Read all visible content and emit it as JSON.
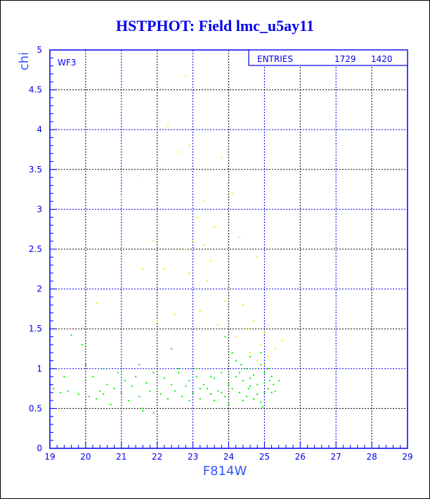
{
  "chart_data": {
    "type": "scatter",
    "title": "HSTPHOT: Field lmc_u5ay11",
    "xlabel": "F814W",
    "ylabel": "chi",
    "xlim": [
      19,
      29
    ],
    "ylim": [
      0,
      5
    ],
    "xticks": [
      "19",
      "20",
      "21",
      "22",
      "23",
      "24",
      "25",
      "26",
      "27",
      "28",
      "29"
    ],
    "yticks": [
      "0",
      "0.5",
      "1",
      "1.5",
      "2",
      "2.5",
      "3",
      "3.5",
      "4",
      "4.5",
      "5"
    ],
    "grid": true,
    "annotation": "WF3",
    "stats_box": {
      "label": "ENTRIES",
      "values": [
        "1729",
        "1420"
      ]
    },
    "colors": {
      "axis": "#0000ee",
      "grid_primary": "#0000ee",
      "grid_secondary": "#000000",
      "series_main": "#00ee00",
      "series_high_chi": "#eeee00"
    },
    "series": [
      {
        "color": "#00ee00",
        "points": [
          [
            19.1,
            0.75
          ],
          [
            19.3,
            0.7
          ],
          [
            19.5,
            0.72
          ],
          [
            19.6,
            1.42
          ],
          [
            19.8,
            0.68
          ],
          [
            19.9,
            1.3
          ],
          [
            20.0,
            0.85
          ],
          [
            20.1,
            0.65
          ],
          [
            20.2,
            0.9
          ],
          [
            20.3,
            0.62
          ],
          [
            20.4,
            0.72
          ],
          [
            20.5,
            0.68
          ],
          [
            20.6,
            0.8
          ],
          [
            20.7,
            0.55
          ],
          [
            20.8,
            0.75
          ],
          [
            20.9,
            0.95
          ],
          [
            21.0,
            0.7
          ],
          [
            21.1,
            0.85
          ],
          [
            21.2,
            0.6
          ],
          [
            21.3,
            0.78
          ],
          [
            21.4,
            0.9
          ],
          [
            21.5,
            0.65
          ],
          [
            21.6,
            0.5
          ],
          [
            21.7,
            0.82
          ],
          [
            21.8,
            0.72
          ],
          [
            21.9,
            0.95
          ],
          [
            22.0,
            0.75
          ],
          [
            22.1,
            0.68
          ],
          [
            22.2,
            0.88
          ],
          [
            22.3,
            0.62
          ],
          [
            22.4,
            0.8
          ],
          [
            22.5,
            0.72
          ],
          [
            22.6,
            0.95
          ],
          [
            22.7,
            0.65
          ],
          [
            22.8,
            0.78
          ],
          [
            22.9,
            0.85
          ],
          [
            23.0,
            0.7
          ],
          [
            23.1,
            0.9
          ],
          [
            23.2,
            0.62
          ],
          [
            23.3,
            0.8
          ],
          [
            23.4,
            0.75
          ],
          [
            23.5,
            0.68
          ],
          [
            23.6,
            0.88
          ],
          [
            23.7,
            0.72
          ],
          [
            23.8,
            0.95
          ],
          [
            23.9,
            0.65
          ],
          [
            24.0,
            0.8
          ],
          [
            24.1,
            0.75
          ],
          [
            24.2,
            0.9
          ],
          [
            24.3,
            0.7
          ],
          [
            24.4,
            0.85
          ],
          [
            24.5,
            1.0
          ],
          [
            24.6,
            0.78
          ],
          [
            24.7,
            0.92
          ],
          [
            24.8,
            0.68
          ],
          [
            24.9,
            1.05
          ],
          [
            25.0,
            0.82
          ],
          [
            25.1,
            0.75
          ],
          [
            25.2,
            0.9
          ],
          [
            25.3,
            0.72
          ],
          [
            25.4,
            0.85
          ],
          [
            24.2,
            1.1
          ],
          [
            24.5,
            0.65
          ],
          [
            24.7,
            0.62
          ],
          [
            24.9,
            0.58
          ],
          [
            25.0,
            0.95
          ],
          [
            25.1,
            1.0
          ],
          [
            25.2,
            0.7
          ],
          [
            24.3,
            0.95
          ],
          [
            24.6,
            0.88
          ],
          [
            24.8,
            0.8
          ],
          [
            23.5,
            0.9
          ],
          [
            23.8,
            0.7
          ],
          [
            23.2,
            0.75
          ],
          [
            22.9,
            0.6
          ],
          [
            24.4,
            0.6
          ],
          [
            25.0,
            0.7
          ],
          [
            24.1,
            1.2
          ],
          [
            24.6,
            1.15
          ],
          [
            24.9,
            1.2
          ],
          [
            23.9,
            1.4
          ],
          [
            22.4,
            1.25
          ],
          [
            21.5,
            1.05
          ],
          [
            20.5,
            1.0
          ],
          [
            19.0,
            0.8
          ],
          [
            23.6,
            0.6
          ],
          [
            24.0,
            0.55
          ],
          [
            24.95,
            0.52
          ],
          [
            22.6,
            1.0
          ],
          [
            23.1,
            1.0
          ],
          [
            21.9,
            0.45
          ],
          [
            21.6,
            0.47
          ],
          [
            20.0,
            1.05
          ],
          [
            19.4,
            0.9
          ],
          [
            24.35,
            1.05
          ],
          [
            24.75,
            1.0
          ],
          [
            25.15,
            0.85
          ],
          [
            25.25,
            0.8
          ],
          [
            24.55,
            0.75
          ]
        ]
      },
      {
        "color": "#eeee00",
        "points": [
          [
            22.8,
            4.68
          ],
          [
            22.3,
            4.05
          ],
          [
            22.9,
            3.8
          ],
          [
            22.6,
            3.72
          ],
          [
            23.8,
            3.65
          ],
          [
            21.5,
            3.42
          ],
          [
            24.1,
            3.2
          ],
          [
            21.0,
            3.15
          ],
          [
            23.3,
            3.1
          ],
          [
            23.1,
            2.9
          ],
          [
            23.6,
            2.78
          ],
          [
            24.3,
            2.65
          ],
          [
            21.9,
            2.6
          ],
          [
            23.0,
            2.6
          ],
          [
            22.8,
            2.5
          ],
          [
            23.5,
            2.35
          ],
          [
            24.8,
            2.4
          ],
          [
            22.2,
            2.25
          ],
          [
            21.6,
            2.25
          ],
          [
            22.9,
            2.2
          ],
          [
            23.4,
            2.1
          ],
          [
            24.0,
            2.0
          ],
          [
            20.3,
            1.82
          ],
          [
            23.2,
            1.72
          ],
          [
            22.5,
            1.68
          ],
          [
            24.4,
            1.8
          ],
          [
            24.7,
            1.6
          ],
          [
            23.7,
            1.55
          ],
          [
            25.0,
            1.45
          ],
          [
            24.2,
            1.4
          ],
          [
            24.9,
            1.3
          ],
          [
            25.3,
            1.25
          ],
          [
            24.6,
            1.2
          ],
          [
            25.1,
            1.15
          ],
          [
            24.8,
            1.1
          ],
          [
            25.0,
            1.05
          ],
          [
            22.0,
            1.6
          ],
          [
            23.9,
            1.85
          ],
          [
            24.5,
            1.5
          ],
          [
            25.5,
            1.35
          ],
          [
            23.3,
            2.55
          ]
        ]
      }
    ]
  }
}
